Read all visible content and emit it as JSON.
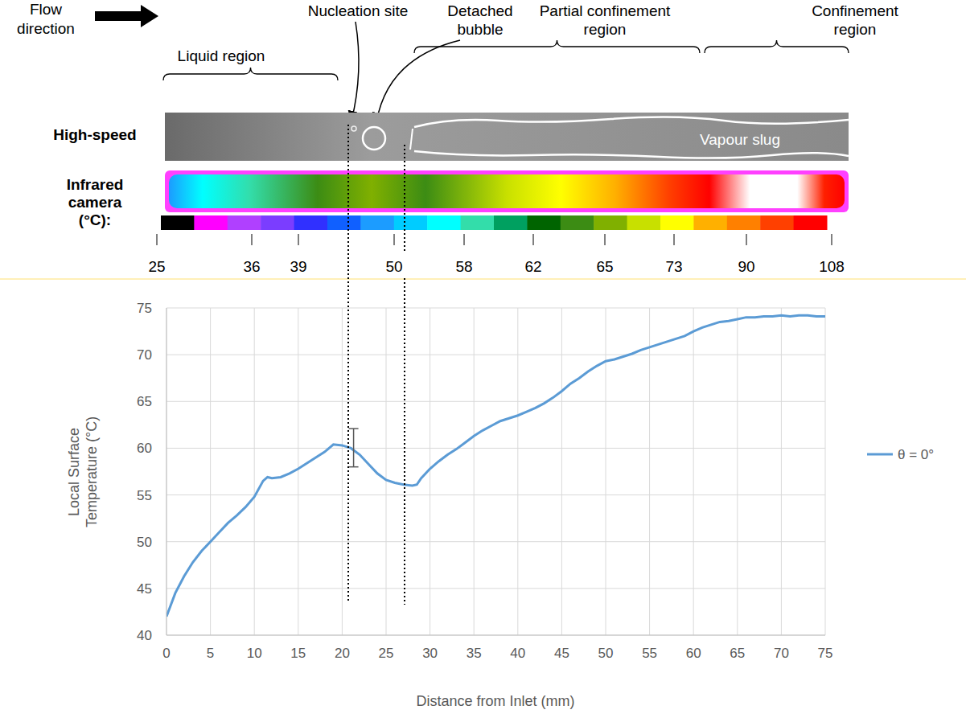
{
  "figure": {
    "flow_label": "Flow direction",
    "annotations": {
      "nucleation_site": "Nucleation site",
      "detached_bubble": "Detached bubble",
      "partial_confinement": "Partial confinement region",
      "confinement": "Confinement region",
      "liquid_region": "Liquid region"
    },
    "row_labels": {
      "high_speed": "High-speed",
      "infrared": "Infrared camera (°C):"
    },
    "image_text": "Vapour slug",
    "colorbar": {
      "ticks": [
        25,
        36,
        39,
        50,
        58,
        62,
        65,
        73,
        90,
        108
      ],
      "colors": [
        "#000000",
        "#ff00ff",
        "#b040ff",
        "#7b3dff",
        "#3030ff",
        "#1060ff",
        "#1c9cff",
        "#00ccff",
        "#00ffff",
        "#33ddaa",
        "#00a060",
        "#006400",
        "#3c8c14",
        "#80b000",
        "#c8e000",
        "#ffff00",
        "#ffb000",
        "#ff8000",
        "#ff4000",
        "#ff0000"
      ]
    }
  },
  "chart_data": {
    "type": "line",
    "xlabel": "Distance from Inlet (mm)",
    "ylabel": "Local Surface Temperature (°C)",
    "x": [
      0,
      1,
      2,
      3,
      4,
      5,
      6,
      7,
      8,
      9,
      10,
      11,
      11.5,
      12,
      13,
      14,
      15,
      16,
      17,
      18,
      19,
      20,
      21,
      22,
      23,
      24,
      25,
      26,
      27,
      28,
      28.5,
      29,
      30,
      31,
      32,
      33,
      34,
      35,
      36,
      37,
      38,
      39,
      40,
      41,
      42,
      43,
      44,
      45,
      46,
      47,
      48,
      49,
      50,
      51,
      52,
      53,
      54,
      55,
      56,
      57,
      58,
      59,
      60,
      61,
      62,
      63,
      64,
      65,
      66,
      67,
      68,
      69,
      70,
      71,
      72,
      73,
      74,
      75
    ],
    "series": [
      {
        "name": "θ = 0°",
        "color": "#5b9bd5",
        "values": [
          42,
          44.5,
          46.3,
          47.8,
          49,
          50,
          51,
          52,
          52.8,
          53.7,
          54.8,
          56.5,
          56.9,
          56.8,
          56.9,
          57.3,
          57.8,
          58.4,
          59,
          59.6,
          60.4,
          60.3,
          60,
          59.3,
          58.3,
          57.3,
          56.6,
          56.3,
          56.1,
          56,
          56.1,
          56.8,
          57.8,
          58.6,
          59.3,
          59.9,
          60.6,
          61.3,
          61.9,
          62.4,
          62.9,
          63.2,
          63.5,
          63.9,
          64.3,
          64.8,
          65.4,
          66.1,
          66.9,
          67.5,
          68.2,
          68.8,
          69.3,
          69.5,
          69.8,
          70.1,
          70.5,
          70.8,
          71.1,
          71.4,
          71.7,
          72,
          72.5,
          72.9,
          73.2,
          73.5,
          73.6,
          73.8,
          74,
          74,
          74.1,
          74.1,
          74.2,
          74.1,
          74.2,
          74.2,
          74.1,
          74.1
        ],
        "error_bar": {
          "x": 21.3,
          "low": 58,
          "high": 62.1
        }
      }
    ],
    "xlim": [
      0,
      75
    ],
    "xticks": [
      0,
      5,
      10,
      15,
      20,
      25,
      30,
      35,
      40,
      45,
      50,
      55,
      60,
      65,
      70,
      75
    ],
    "ylim": [
      40,
      75
    ],
    "yticks": [
      40,
      45,
      50,
      55,
      60,
      65,
      70,
      75
    ],
    "grid": true,
    "legend": "right"
  }
}
